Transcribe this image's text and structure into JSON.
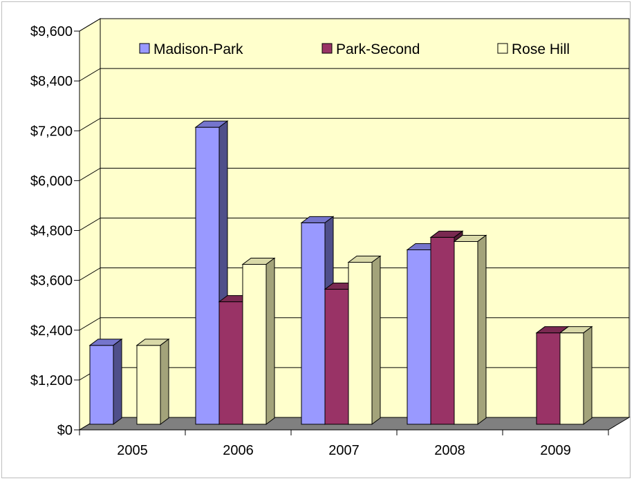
{
  "chart_data": {
    "type": "bar",
    "categories": [
      "2005",
      "2006",
      "2007",
      "2008",
      "2009"
    ],
    "series": [
      {
        "name": "Madison-Park",
        "values": [
          1900,
          7150,
          4850,
          4200,
          null
        ]
      },
      {
        "name": "Park-Second",
        "values": [
          null,
          2950,
          3250,
          4500,
          2200
        ]
      },
      {
        "name": "Rose Hill",
        "values": [
          1900,
          3850,
          3900,
          4400,
          2200
        ]
      }
    ],
    "ylim": [
      0,
      9600
    ],
    "yticks": [
      "$0",
      "$1,200",
      "$2,400",
      "$3,600",
      "$4,800",
      "$6,000",
      "$7,200",
      "$8,400",
      "$9,600"
    ],
    "legend_position": "top",
    "grid": true,
    "colors": {
      "Madison-Park": {
        "front": "#9999ff",
        "top": "#7575cc",
        "side": "#4f4f8a"
      },
      "Park-Second": {
        "front": "#993366",
        "top": "#7a2951",
        "side": "#521b36"
      },
      "Rose Hill": {
        "front": "#ffffcc",
        "top": "#d9d9a8",
        "side": "#a3a37a"
      },
      "wall": "#ffffcc",
      "floor": "#808080"
    }
  }
}
